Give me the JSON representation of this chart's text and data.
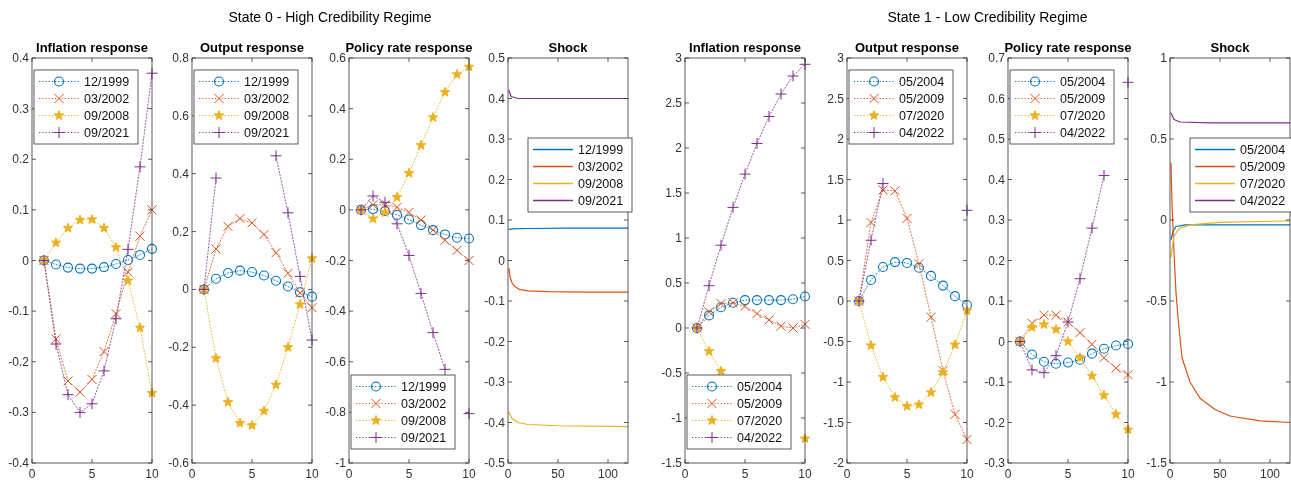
{
  "chart_data": [
    {
      "type": "line",
      "title": "Inflation response",
      "annotations": [
        "State 0 - High Credibility Regime"
      ],
      "x": [
        1,
        2,
        3,
        4,
        5,
        6,
        7,
        8,
        9,
        10
      ],
      "xlim": [
        0,
        10
      ],
      "xticks": [
        0,
        5,
        10
      ],
      "ylim": [
        -0.4,
        0.4
      ],
      "yticks": [
        -0.4,
        -0.3,
        -0.2,
        -0.1,
        0,
        0.1,
        0.2,
        0.3,
        0.4
      ],
      "legend": "top",
      "line_style": "dotted",
      "series": [
        {
          "name": "12/1999",
          "color": "#0072bd",
          "marker": "circle",
          "values": [
            0,
            -0.008,
            -0.014,
            -0.016,
            -0.016,
            -0.013,
            -0.007,
            0.001,
            0.011,
            0.023
          ]
        },
        {
          "name": "03/2002",
          "color": "#d95319",
          "marker": "cross",
          "values": [
            0,
            -0.155,
            -0.238,
            -0.26,
            -0.235,
            -0.18,
            -0.105,
            -0.023,
            0.048,
            0.1
          ]
        },
        {
          "name": "09/2008",
          "color": "#edb120",
          "marker": "star",
          "values": [
            0,
            0.035,
            0.064,
            0.08,
            0.081,
            0.064,
            0.026,
            -0.04,
            -0.133,
            -0.262
          ]
        },
        {
          "name": "09/2021",
          "color": "#7e2f8e",
          "marker": "plus",
          "values": [
            0,
            -0.165,
            -0.265,
            -0.3,
            -0.283,
            -0.218,
            -0.115,
            0.022,
            0.185,
            0.37
          ]
        }
      ]
    },
    {
      "type": "line",
      "title": "Output response",
      "x": [
        1,
        2,
        3,
        4,
        5,
        6,
        7,
        8,
        9,
        10
      ],
      "xlim": [
        0,
        10
      ],
      "xticks": [
        0,
        5,
        10
      ],
      "ylim": [
        -0.6,
        0.8
      ],
      "yticks": [
        -0.6,
        -0.4,
        -0.2,
        0,
        0.2,
        0.4,
        0.6,
        0.8
      ],
      "legend": "top",
      "line_style": "dotted",
      "series": [
        {
          "name": "12/1999",
          "color": "#0072bd",
          "marker": "circle",
          "values": [
            0,
            0.037,
            0.057,
            0.065,
            0.06,
            0.048,
            0.03,
            0.01,
            -0.01,
            -0.025
          ]
        },
        {
          "name": "03/2002",
          "color": "#d95319",
          "marker": "cross",
          "values": [
            0,
            0.14,
            0.218,
            0.245,
            0.23,
            0.19,
            0.127,
            0.056,
            -0.012,
            -0.063
          ]
        },
        {
          "name": "09/2008",
          "color": "#edb120",
          "marker": "star",
          "values": [
            0,
            -0.238,
            -0.39,
            -0.462,
            -0.47,
            -0.42,
            -0.33,
            -0.2,
            -0.052,
            0.107
          ]
        },
        {
          "name": "09/2021",
          "color": "#7e2f8e",
          "marker": "plus",
          "values": [
            0,
            0.385,
            null,
            null,
            null,
            null,
            0.462,
            0.265,
            0.045,
            -0.175
          ]
        }
      ]
    },
    {
      "type": "line",
      "title": "Policy rate response",
      "x": [
        1,
        2,
        3,
        4,
        5,
        6,
        7,
        8,
        9,
        10
      ],
      "xlim": [
        0,
        10
      ],
      "xticks": [
        0,
        5,
        10
      ],
      "ylim": [
        -1,
        0.6
      ],
      "yticks": [
        -1,
        -0.8,
        -0.6,
        -0.4,
        -0.2,
        0,
        0.2,
        0.4,
        0.6
      ],
      "legend": "bottom",
      "line_style": "dotted",
      "series": [
        {
          "name": "12/1999",
          "color": "#0072bd",
          "marker": "circle",
          "values": [
            0,
            0.003,
            -0.005,
            -0.02,
            -0.038,
            -0.06,
            -0.08,
            -0.097,
            -0.11,
            -0.113
          ]
        },
        {
          "name": "03/2002",
          "color": "#d95319",
          "marker": "cross",
          "values": [
            0,
            0.02,
            0.02,
            0.01,
            -0.01,
            -0.04,
            -0.08,
            -0.12,
            -0.16,
            -0.2
          ]
        },
        {
          "name": "09/2008",
          "color": "#edb120",
          "marker": "star",
          "values": [
            0,
            -0.035,
            -0.01,
            0.05,
            0.145,
            0.255,
            0.365,
            0.465,
            0.535,
            0.565
          ]
        },
        {
          "name": "09/2021",
          "color": "#7e2f8e",
          "marker": "plus",
          "values": [
            0,
            0.055,
            0.03,
            -0.055,
            -0.18,
            -0.33,
            -0.485,
            -0.63,
            null,
            -0.805
          ]
        }
      ]
    },
    {
      "type": "line",
      "title": "Shock",
      "xlim": [
        0,
        120
      ],
      "xticks": [
        0,
        50,
        100
      ],
      "ylim": [
        -0.5,
        0.5
      ],
      "yticks": [
        -0.5,
        -0.4,
        -0.3,
        -0.2,
        -0.1,
        0,
        0.1,
        0.2,
        0.3,
        0.4,
        0.5
      ],
      "legend": "right",
      "line_style": "solid",
      "series": [
        {
          "name": "12/1999",
          "color": "#0072bd",
          "x": [
            1,
            5,
            20,
            60,
            120
          ],
          "values": [
            0.077,
            0.078,
            0.079,
            0.08,
            0.08
          ]
        },
        {
          "name": "03/2002",
          "color": "#d95319",
          "x": [
            1,
            2,
            4,
            7,
            12,
            20,
            40,
            80,
            120
          ],
          "values": [
            -0.02,
            -0.04,
            -0.055,
            -0.065,
            -0.072,
            -0.075,
            -0.077,
            -0.078,
            -0.078
          ]
        },
        {
          "name": "09/2008",
          "color": "#edb120",
          "x": [
            1,
            4,
            10,
            20,
            50,
            120
          ],
          "values": [
            -0.375,
            -0.39,
            -0.4,
            -0.405,
            -0.408,
            -0.41
          ]
        },
        {
          "name": "09/2021",
          "color": "#7e2f8e",
          "x": [
            1,
            3,
            10,
            120
          ],
          "values": [
            0.42,
            0.405,
            0.4,
            0.4
          ]
        }
      ]
    },
    {
      "type": "line",
      "title": "Inflation response",
      "annotations": [
        "State 1 - Low Credibility Regime"
      ],
      "x": [
        1,
        2,
        3,
        4,
        5,
        6,
        7,
        8,
        9,
        10
      ],
      "xlim": [
        0,
        10
      ],
      "xticks": [
        0,
        5,
        10
      ],
      "ylim": [
        -1.5,
        3
      ],
      "yticks": [
        -1.5,
        -1,
        -0.5,
        0,
        0.5,
        1,
        1.5,
        2,
        2.5,
        3
      ],
      "legend": "bottom",
      "line_style": "dotted",
      "series": [
        {
          "name": "05/2004",
          "color": "#0072bd",
          "marker": "circle",
          "values": [
            0,
            0.14,
            0.23,
            0.28,
            0.31,
            0.31,
            0.31,
            0.31,
            0.32,
            0.35
          ]
        },
        {
          "name": "05/2009",
          "color": "#d95319",
          "marker": "cross",
          "values": [
            0,
            0.18,
            0.27,
            0.28,
            0.24,
            0.16,
            0.09,
            0.02,
            0,
            0.04
          ]
        },
        {
          "name": "07/2020",
          "color": "#edb120",
          "marker": "star",
          "values": [
            0,
            -0.26,
            -0.48,
            null,
            null,
            null,
            null,
            null,
            null,
            -1.23
          ]
        },
        {
          "name": "04/2022",
          "color": "#7e2f8e",
          "marker": "plus",
          "values": [
            0,
            0.47,
            0.92,
            1.34,
            1.71,
            2.05,
            2.35,
            2.6,
            2.8,
            2.93
          ]
        }
      ]
    },
    {
      "type": "line",
      "title": "Output response",
      "x": [
        1,
        2,
        3,
        4,
        5,
        6,
        7,
        8,
        9,
        10
      ],
      "xlim": [
        0,
        10
      ],
      "xticks": [
        0,
        5,
        10
      ],
      "ylim": [
        -2,
        3
      ],
      "yticks": [
        -2,
        -1.5,
        -1,
        -0.5,
        0,
        0.5,
        1,
        1.5,
        2,
        2.5,
        3
      ],
      "legend": "top",
      "line_style": "dotted",
      "series": [
        {
          "name": "05/2004",
          "color": "#0072bd",
          "marker": "circle",
          "values": [
            0,
            0.26,
            0.42,
            0.48,
            0.47,
            0.41,
            0.31,
            0.19,
            0.06,
            -0.05
          ]
        },
        {
          "name": "05/2009",
          "color": "#d95319",
          "marker": "cross",
          "values": [
            0,
            0.97,
            1.37,
            1.36,
            1.02,
            0.46,
            -0.2,
            -0.86,
            -1.4,
            -1.71
          ]
        },
        {
          "name": "07/2020",
          "color": "#edb120",
          "marker": "star",
          "values": [
            0,
            -0.55,
            -0.94,
            -1.19,
            -1.3,
            -1.28,
            -1.13,
            -0.88,
            -0.54,
            -0.12
          ]
        },
        {
          "name": "04/2022",
          "color": "#7e2f8e",
          "marker": "plus",
          "values": [
            0,
            0.75,
            1.45,
            null,
            null,
            null,
            null,
            null,
            null,
            1.12
          ]
        }
      ]
    },
    {
      "type": "line",
      "title": "Policy rate response",
      "x": [
        1,
        2,
        3,
        4,
        5,
        6,
        7,
        8,
        9,
        10
      ],
      "xlim": [
        0,
        10
      ],
      "xticks": [
        0,
        5,
        10
      ],
      "ylim": [
        -0.3,
        0.7
      ],
      "yticks": [
        -0.3,
        -0.2,
        -0.1,
        0,
        0.1,
        0.2,
        0.3,
        0.4,
        0.5,
        0.6,
        0.7
      ],
      "legend": "top",
      "line_style": "dotted",
      "series": [
        {
          "name": "05/2004",
          "color": "#0072bd",
          "marker": "circle",
          "values": [
            0,
            -0.032,
            -0.05,
            -0.055,
            -0.052,
            -0.045,
            -0.03,
            -0.018,
            -0.01,
            -0.006
          ]
        },
        {
          "name": "05/2009",
          "color": "#d95319",
          "marker": "cross",
          "values": [
            0,
            0.045,
            0.065,
            0.065,
            0.048,
            0.022,
            -0.007,
            -0.04,
            -0.066,
            -0.082
          ]
        },
        {
          "name": "07/2020",
          "color": "#edb120",
          "marker": "star",
          "values": [
            0,
            0.035,
            0.042,
            0.03,
            0,
            -0.04,
            -0.085,
            -0.133,
            -0.18,
            -0.218
          ]
        },
        {
          "name": "04/2022",
          "color": "#7e2f8e",
          "marker": "plus",
          "values": [
            0,
            -0.07,
            -0.077,
            -0.035,
            0.048,
            0.155,
            0.28,
            0.41,
            null,
            0.64
          ]
        }
      ]
    },
    {
      "type": "line",
      "title": "Shock",
      "xlim": [
        0,
        120
      ],
      "xticks": [
        0,
        50,
        100
      ],
      "ylim": [
        -1.5,
        1
      ],
      "yticks": [
        -1.5,
        -1,
        -0.5,
        0,
        0.5,
        1
      ],
      "legend": "right",
      "line_style": "solid",
      "series": [
        {
          "name": "05/2004",
          "color": "#0072bd",
          "x": [
            1,
            3,
            6,
            15,
            40,
            120
          ],
          "values": [
            -0.12,
            -0.07,
            -0.04,
            -0.03,
            -0.03,
            -0.03
          ]
        },
        {
          "name": "05/2009",
          "color": "#d95319",
          "x": [
            1,
            2,
            4,
            6,
            8,
            12,
            20,
            30,
            45,
            60,
            90,
            120
          ],
          "values": [
            0.35,
            0.1,
            -0.2,
            -0.45,
            -0.6,
            -0.85,
            -1,
            -1.1,
            -1.17,
            -1.21,
            -1.24,
            -1.25
          ]
        },
        {
          "name": "07/2020",
          "color": "#edb120",
          "x": [
            1,
            2,
            4,
            7,
            10,
            20,
            50,
            120
          ],
          "values": [
            -0.23,
            -0.18,
            -0.1,
            -0.07,
            -0.05,
            -0.03,
            -0.015,
            -0.005
          ]
        },
        {
          "name": "04/2022",
          "color": "#7e2f8e",
          "x": [
            1,
            4,
            10,
            40,
            120
          ],
          "values": [
            0.66,
            0.62,
            0.605,
            0.6,
            0.6
          ]
        }
      ]
    }
  ]
}
